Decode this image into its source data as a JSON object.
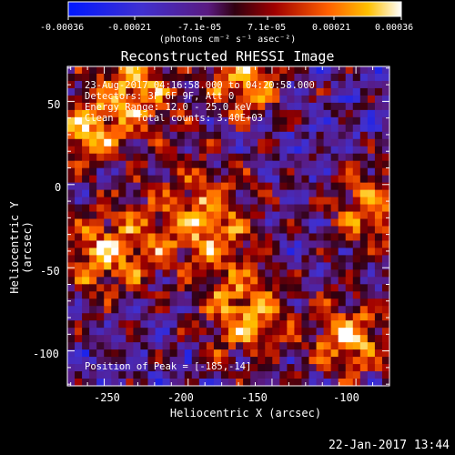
{
  "colorbar": {
    "tick_labels": [
      "-0.00036",
      "-0.00021",
      "-7.1e-05",
      "7.1e-05",
      "0.00021",
      "0.00036"
    ],
    "unit_label": "(photons cm⁻² s⁻¹ asec⁻²)"
  },
  "plot": {
    "title": "Reconstructed RHESSI Image",
    "xlabel": "Heliocentric X (arcsec)",
    "ylabel": "Heliocentric Y (arcsec)",
    "x_ticks": [
      "-250",
      "-200",
      "-150",
      "-100"
    ],
    "y_ticks": [
      "50",
      "0",
      "-50",
      "-100"
    ],
    "xlim": [
      -272,
      -80
    ],
    "ylim": [
      -121,
      71
    ]
  },
  "info": {
    "line1": "23-Aug-2017 04:16:58.000 to 04:20:58.000",
    "line2": "Detectors: 3F 6F 9F, Att 0",
    "line3": "Energy Range: 12.0 - 25.0 keV",
    "line4": "Clean    Total counts: 3.40E+03",
    "peak": "Position of Peak = [-185,-14]"
  },
  "footer": {
    "date": "22-Jan-2017 13:44"
  }
}
